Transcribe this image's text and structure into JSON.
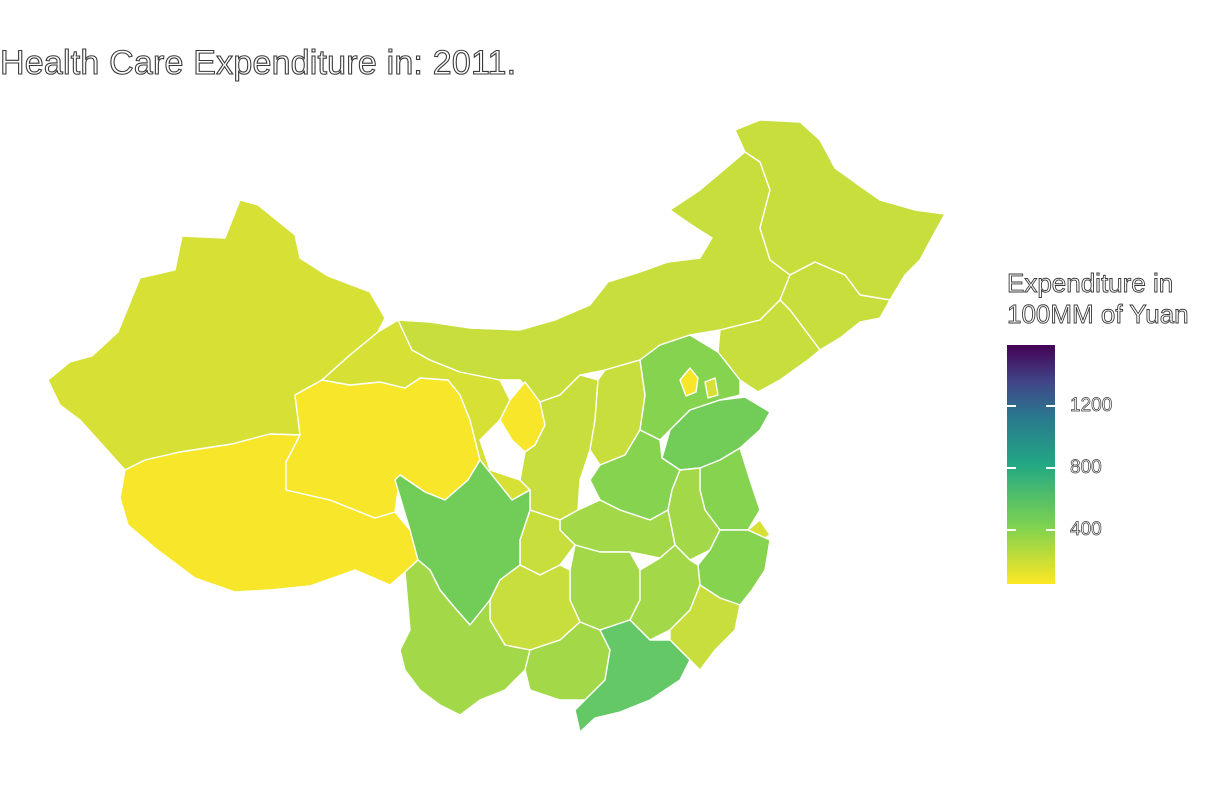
{
  "title": "Health Care Expenditure in: 2011.",
  "legend": {
    "title_line1": "Expenditure in",
    "title_line2": "100MM of Yuan",
    "ticks": [
      "1200",
      "800",
      "400"
    ],
    "colors": {
      "low": "#fde725",
      "mid": "#22a884",
      "high": "#440154"
    }
  },
  "palette": {
    "yellow": "#f8e62b",
    "yellow_green": "#d6e035",
    "lime": "#c8de3c",
    "light_green": "#a3d948",
    "green": "#86d350",
    "mid_green": "#72cd58",
    "deep_green": "#64c866",
    "border": "#ffffff"
  }
}
